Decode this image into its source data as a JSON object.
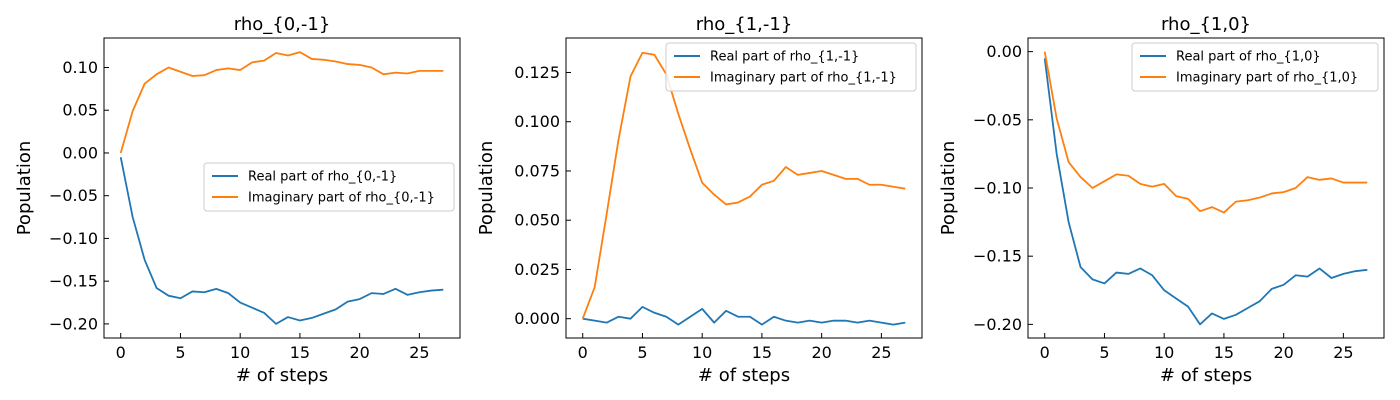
{
  "chart_data": [
    {
      "type": "line",
      "title": "rho_{0,-1}",
      "xlabel": "# of steps",
      "ylabel": "Population",
      "xlim": [
        -1.4,
        28.4
      ],
      "ylim": [
        -0.2165,
        0.1345
      ],
      "xticks": [
        0,
        5,
        10,
        15,
        20,
        25
      ],
      "yticks": [
        -0.2,
        -0.15,
        -0.1,
        -0.05,
        0.0,
        0.05,
        0.1
      ],
      "xtick_labels": [
        "0",
        "5",
        "10",
        "15",
        "20",
        "25"
      ],
      "ytick_labels": [
        "−0.20",
        "−0.15",
        "−0.10",
        "−0.05",
        "0.00",
        "0.05",
        "0.10"
      ],
      "legend_position": "center-right",
      "x": [
        0,
        1,
        2,
        3,
        4,
        5,
        6,
        7,
        8,
        9,
        10,
        11,
        12,
        13,
        14,
        15,
        16,
        17,
        18,
        19,
        20,
        21,
        22,
        23,
        24,
        25,
        26,
        27
      ],
      "series": [
        {
          "name": "Real part of rho_{0,-1}",
          "color": "#1f77b4",
          "values": [
            -0.005,
            -0.075,
            -0.125,
            -0.158,
            -0.167,
            -0.17,
            -0.162,
            -0.163,
            -0.159,
            -0.164,
            -0.175,
            -0.181,
            -0.187,
            -0.2,
            -0.192,
            -0.196,
            -0.193,
            -0.188,
            -0.183,
            -0.174,
            -0.171,
            -0.164,
            -0.165,
            -0.159,
            -0.166,
            -0.163,
            -0.161,
            -0.16
          ]
        },
        {
          "name": "Imaginary part of rho_{0,-1}",
          "color": "#ff7f0e",
          "values": [
            0.0,
            0.049,
            0.081,
            0.092,
            0.1,
            0.095,
            0.09,
            0.091,
            0.097,
            0.099,
            0.097,
            0.106,
            0.108,
            0.117,
            0.114,
            0.118,
            0.11,
            0.109,
            0.107,
            0.104,
            0.103,
            0.1,
            0.092,
            0.094,
            0.093,
            0.096,
            0.096,
            0.096
          ]
        }
      ]
    },
    {
      "type": "line",
      "title": "rho_{1,-1}",
      "xlabel": "# of steps",
      "ylabel": "Population",
      "xlim": [
        -1.4,
        28.4
      ],
      "ylim": [
        -0.0098,
        0.1425
      ],
      "xticks": [
        0,
        5,
        10,
        15,
        20,
        25
      ],
      "yticks": [
        0.0,
        0.025,
        0.05,
        0.075,
        0.1,
        0.125
      ],
      "xtick_labels": [
        "0",
        "5",
        "10",
        "15",
        "20",
        "25"
      ],
      "ytick_labels": [
        "0.000",
        "0.025",
        "0.050",
        "0.075",
        "0.100",
        "0.125"
      ],
      "legend_position": "upper-right",
      "x": [
        0,
        1,
        2,
        3,
        4,
        5,
        6,
        7,
        8,
        9,
        10,
        11,
        12,
        13,
        14,
        15,
        16,
        17,
        18,
        19,
        20,
        21,
        22,
        23,
        24,
        25,
        26,
        27
      ],
      "series": [
        {
          "name": "Real part of rho_{1,-1}",
          "color": "#1f77b4",
          "values": [
            0.0,
            -0.001,
            -0.002,
            0.001,
            0.0,
            0.006,
            0.003,
            0.001,
            -0.003,
            0.001,
            0.005,
            -0.002,
            0.004,
            0.001,
            0.001,
            -0.003,
            0.001,
            -0.001,
            -0.002,
            -0.001,
            -0.002,
            -0.001,
            -0.001,
            -0.002,
            -0.001,
            -0.002,
            -0.003,
            -0.002
          ]
        },
        {
          "name": "Imaginary part of rho_{1,-1}",
          "color": "#ff7f0e",
          "values": [
            0.0,
            0.016,
            0.053,
            0.091,
            0.123,
            0.135,
            0.134,
            0.124,
            0.104,
            0.086,
            0.069,
            0.063,
            0.058,
            0.059,
            0.062,
            0.068,
            0.07,
            0.077,
            0.073,
            0.074,
            0.075,
            0.073,
            0.071,
            0.071,
            0.068,
            0.068,
            0.067,
            0.066
          ]
        }
      ]
    },
    {
      "type": "line",
      "title": "rho_{1,0}",
      "xlabel": "# of steps",
      "ylabel": "Population",
      "xlim": [
        -1.4,
        28.4
      ],
      "ylim": [
        -0.21,
        0.01
      ],
      "xticks": [
        0,
        5,
        10,
        15,
        20,
        25
      ],
      "yticks": [
        -0.2,
        -0.15,
        -0.1,
        -0.05,
        0.0
      ],
      "xtick_labels": [
        "0",
        "5",
        "10",
        "15",
        "20",
        "25"
      ],
      "ytick_labels": [
        "−0.20",
        "−0.15",
        "−0.10",
        "−0.05",
        "0.00"
      ],
      "legend_position": "upper-right",
      "x": [
        0,
        1,
        2,
        3,
        4,
        5,
        6,
        7,
        8,
        9,
        10,
        11,
        12,
        13,
        14,
        15,
        16,
        17,
        18,
        19,
        20,
        21,
        22,
        23,
        24,
        25,
        26,
        27
      ],
      "series": [
        {
          "name": "Real part of rho_{1,0}",
          "color": "#1f77b4",
          "values": [
            -0.005,
            -0.075,
            -0.125,
            -0.158,
            -0.167,
            -0.17,
            -0.162,
            -0.163,
            -0.159,
            -0.164,
            -0.175,
            -0.181,
            -0.187,
            -0.2,
            -0.192,
            -0.196,
            -0.193,
            -0.188,
            -0.183,
            -0.174,
            -0.171,
            -0.164,
            -0.165,
            -0.159,
            -0.166,
            -0.163,
            -0.161,
            -0.16
          ]
        },
        {
          "name": "Imaginary part of rho_{1,0}",
          "color": "#ff7f0e",
          "values": [
            0.0,
            -0.049,
            -0.081,
            -0.092,
            -0.1,
            -0.095,
            -0.09,
            -0.091,
            -0.097,
            -0.099,
            -0.097,
            -0.106,
            -0.108,
            -0.117,
            -0.114,
            -0.118,
            -0.11,
            -0.109,
            -0.107,
            -0.104,
            -0.103,
            -0.1,
            -0.092,
            -0.094,
            -0.093,
            -0.096,
            -0.096,
            -0.096
          ]
        }
      ]
    }
  ]
}
